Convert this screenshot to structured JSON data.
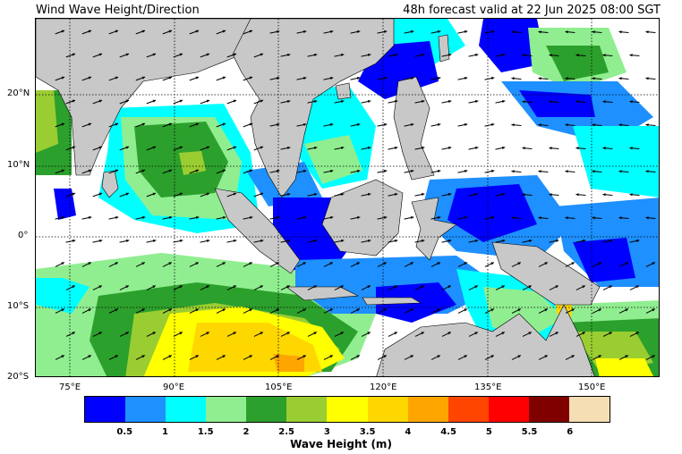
{
  "header": {
    "title": "Wind Wave Height/Direction",
    "valid": "48h forecast valid at 22 Jun 2025 08:00 SGT"
  },
  "map": {
    "lat_labels": [
      "20°N",
      "10°N",
      "0°",
      "10°S",
      "20°S"
    ],
    "lon_labels": [
      "75°E",
      "90°E",
      "105°E",
      "120°E",
      "135°E",
      "150°E"
    ],
    "land_color": "#c8c8c8"
  },
  "colorbar": {
    "title": "Wave Height (m)",
    "tick_labels": [
      "0.5",
      "1",
      "1.5",
      "2",
      "2.5",
      "3",
      "3.5",
      "4",
      "4.5",
      "5",
      "5.5",
      "6"
    ],
    "colors": [
      "#0000ff",
      "#1e90ff",
      "#00ffff",
      "#90ee90",
      "#2ca02c",
      "#9acd32",
      "#ffff00",
      "#ffd700",
      "#ffa500",
      "#ff4500",
      "#ff0000",
      "#800000",
      "#f5deb3"
    ]
  }
}
